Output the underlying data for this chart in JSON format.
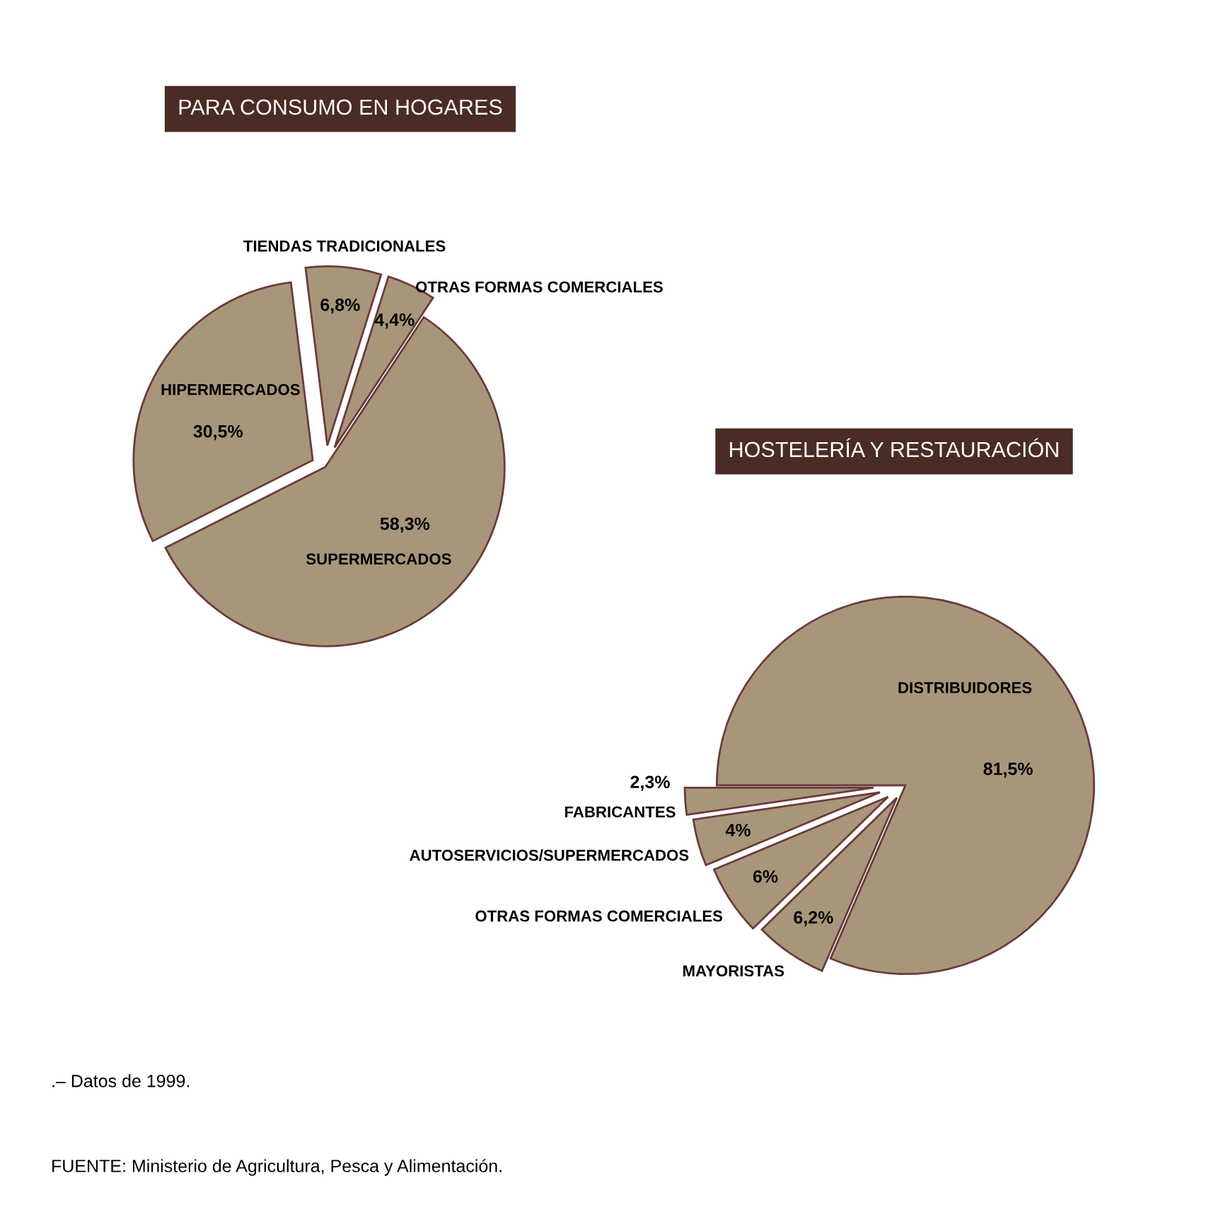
{
  "chart_data": [
    {
      "type": "pie",
      "title": "PARA CONSUMO EN HOGARES",
      "categories": [
        "TIENDAS TRADICIONALES",
        "OTRAS FORMAS COMERCIALES",
        "SUPERMERCADOS",
        "HIPERMERCADOS"
      ],
      "values": [
        6.8,
        4.4,
        58.3,
        30.5
      ],
      "value_labels": [
        "6,8%",
        "4,4%",
        "58,3%",
        "30,5%"
      ],
      "colors": [
        "#a8967a",
        "#a8967a",
        "#a8967a",
        "#a8967a"
      ]
    },
    {
      "type": "pie",
      "title": "HOSTELERÍA Y RESTAURACIÓN",
      "categories": [
        "DISTRIBUIDORES",
        "MAYORISTAS",
        "OTRAS FORMAS COMERCIALES",
        "AUTOSERVICIOS/SUPERMERCADOS",
        "FABRICANTES"
      ],
      "values": [
        81.5,
        6.2,
        6,
        4,
        2.3
      ],
      "value_labels": [
        "81,5%",
        "6,2%",
        "6%",
        "4%",
        "2,3%"
      ],
      "colors": [
        "#a8967a",
        "#a8967a",
        "#a8967a",
        "#a8967a",
        "#a8967a"
      ],
      "annotations": [
        ".– Datos de 1999.",
        "FUENTE: Ministerio de Agricultura, Pesca y Alimentación."
      ]
    }
  ]
}
